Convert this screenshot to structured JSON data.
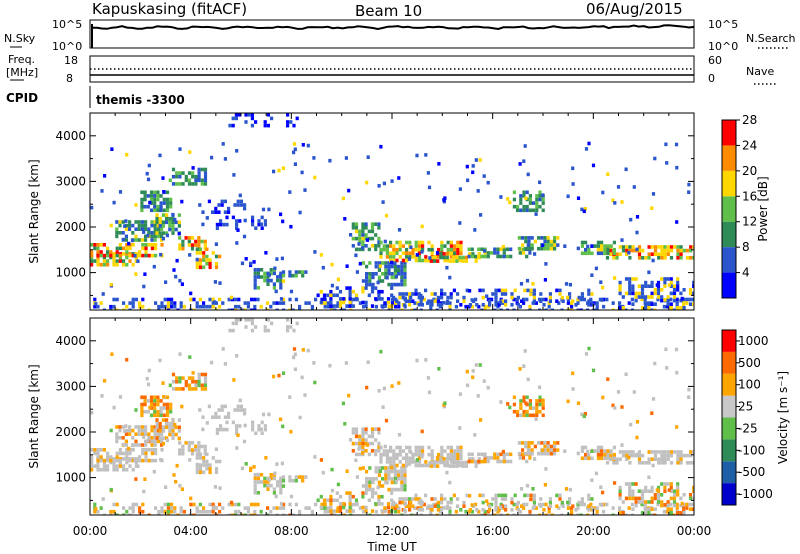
{
  "header": {
    "station": "Kapuskasing (fitACF)",
    "beam": "Beam 10",
    "date": "06/Aug/2015"
  },
  "noise_panel": {
    "left_label": "N.Sky",
    "left_ticks": [
      "10^5",
      "10^0"
    ],
    "right_ticks": [
      "10^5",
      "10^0"
    ],
    "right_label": "N.Search"
  },
  "freq_panel": {
    "left_label_1": "Freq.",
    "left_label_2": "[MHz]",
    "left_ticks": [
      "18",
      "8"
    ],
    "right_ticks": [
      "60",
      "0"
    ],
    "right_label": "Nave"
  },
  "cpid": {
    "label": "CPID",
    "value": "themis -3300"
  },
  "chart_data": [
    {
      "type": "heatmap",
      "name": "power",
      "ylabel": "Slant Range [km]",
      "xlabel": "Time UT",
      "x_ticks": [
        "00:00",
        "04:00",
        "08:00",
        "12:00",
        "16:00",
        "20:00",
        "00:00"
      ],
      "y_ticks": [
        "1000",
        "2000",
        "3000",
        "4000"
      ],
      "ylim": [
        180,
        4500
      ],
      "xlim_hours": [
        0,
        24
      ],
      "colorbar": {
        "label": "Power [dB]",
        "ticks": [
          "4",
          "8",
          "12",
          "16",
          "20",
          "24",
          "28"
        ],
        "colors": [
          "#0000ff",
          "#2a55cc",
          "#2e8b57",
          "#5fbf4a",
          "#ffd700",
          "#ff8c00",
          "#ff0000"
        ]
      }
    },
    {
      "type": "heatmap",
      "name": "velocity",
      "ylabel": "Slant Range [km]",
      "xlabel": "Time UT",
      "x_ticks": [
        "00:00",
        "04:00",
        "08:00",
        "12:00",
        "16:00",
        "20:00",
        "00:00"
      ],
      "y_ticks": [
        "1000",
        "2000",
        "3000",
        "4000"
      ],
      "ylim": [
        180,
        4500
      ],
      "xlim_hours": [
        0,
        24
      ],
      "colorbar": {
        "label": "Velocity [m s⁻¹]",
        "ticks": [
          "1000",
          "500",
          "100",
          "25",
          "-25",
          "-100",
          "-500",
          "-1000"
        ],
        "colors": [
          "#0000cc",
          "#1f5fa8",
          "#2e8b57",
          "#5fbf4a",
          "#c8c8c8",
          "#ffa500",
          "#ff6a00",
          "#ff0000"
        ]
      }
    }
  ],
  "colors": {
    "ground_scatter": "#c0c0c0"
  }
}
